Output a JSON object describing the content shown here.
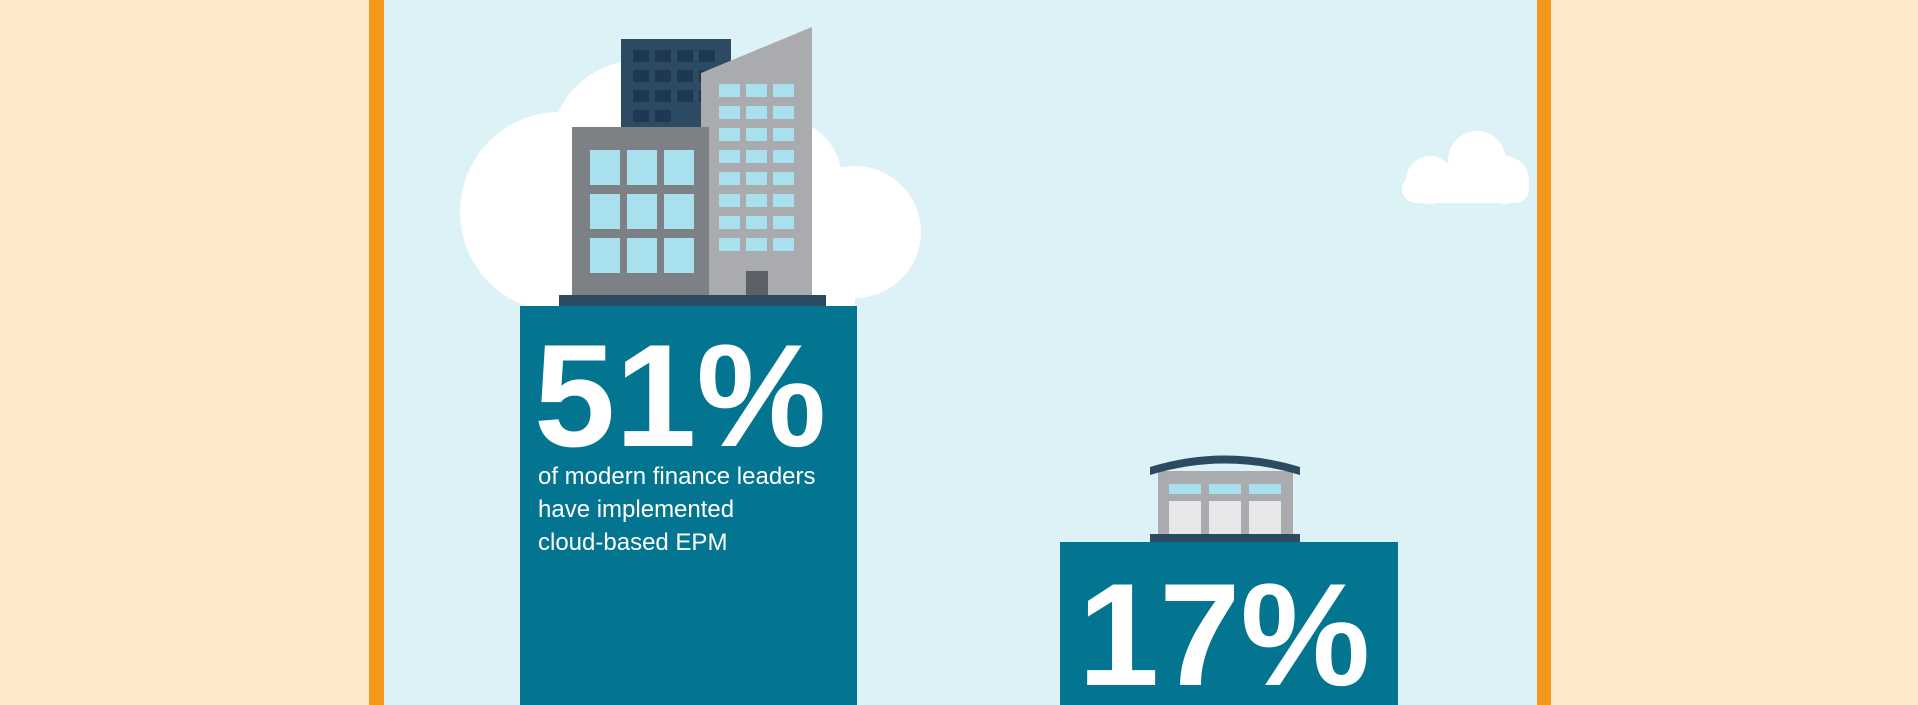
{
  "stats": [
    {
      "value": "51%",
      "caption": [
        "of modern finance leaders",
        "have implemented",
        "cloud-based EPM"
      ]
    },
    {
      "value": "17%"
    }
  ]
}
